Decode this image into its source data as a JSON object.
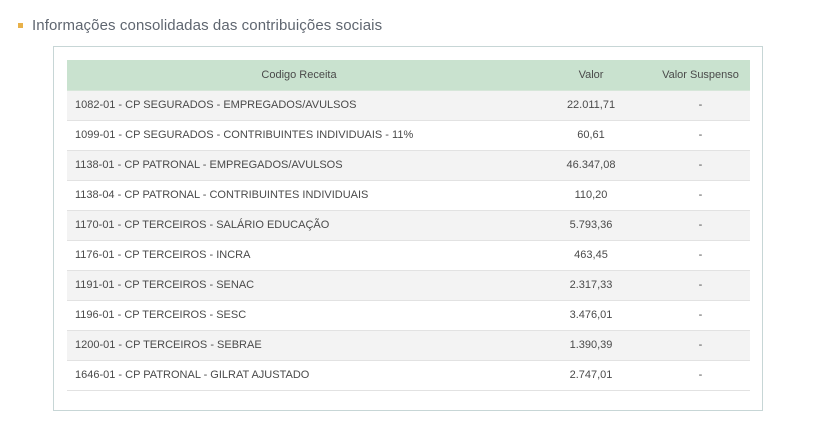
{
  "section": {
    "title": "Informações consolidadas das contribuições sociais"
  },
  "table": {
    "headers": {
      "codigo": "Codigo Receita",
      "valor": "Valor",
      "suspenso": "Valor Suspenso"
    },
    "rows": [
      {
        "codigo": "1082-01 - CP SEGURADOS - EMPREGADOS/AVULSOS",
        "valor": "22.011,71",
        "suspenso": "-"
      },
      {
        "codigo": "1099-01 - CP SEGURADOS - CONTRIBUINTES INDIVIDUAIS - 11%",
        "valor": "60,61",
        "suspenso": "-"
      },
      {
        "codigo": "1138-01 - CP PATRONAL - EMPREGADOS/AVULSOS",
        "valor": "46.347,08",
        "suspenso": "-"
      },
      {
        "codigo": "1138-04 - CP PATRONAL - CONTRIBUINTES INDIVIDUAIS",
        "valor": "110,20",
        "suspenso": "-"
      },
      {
        "codigo": "1170-01 - CP TERCEIROS - SALÁRIO EDUCAÇÃO",
        "valor": "5.793,36",
        "suspenso": "-"
      },
      {
        "codigo": "1176-01 - CP TERCEIROS - INCRA",
        "valor": "463,45",
        "suspenso": "-"
      },
      {
        "codigo": "1191-01 - CP TERCEIROS - SENAC",
        "valor": "2.317,33",
        "suspenso": "-"
      },
      {
        "codigo": "1196-01 - CP TERCEIROS - SESC",
        "valor": "3.476,01",
        "suspenso": "-"
      },
      {
        "codigo": "1200-01 - CP TERCEIROS - SEBRAE",
        "valor": "1.390,39",
        "suspenso": "-"
      },
      {
        "codigo": "1646-01 - CP PATRONAL - GILRAT AJUSTADO",
        "valor": "2.747,01",
        "suspenso": "-"
      }
    ]
  },
  "colors": {
    "bullet": "#e8b14a",
    "header_bg": "#c9e2cf",
    "panel_border": "#c7d6d6",
    "row_alt": "#f3f3f3"
  }
}
